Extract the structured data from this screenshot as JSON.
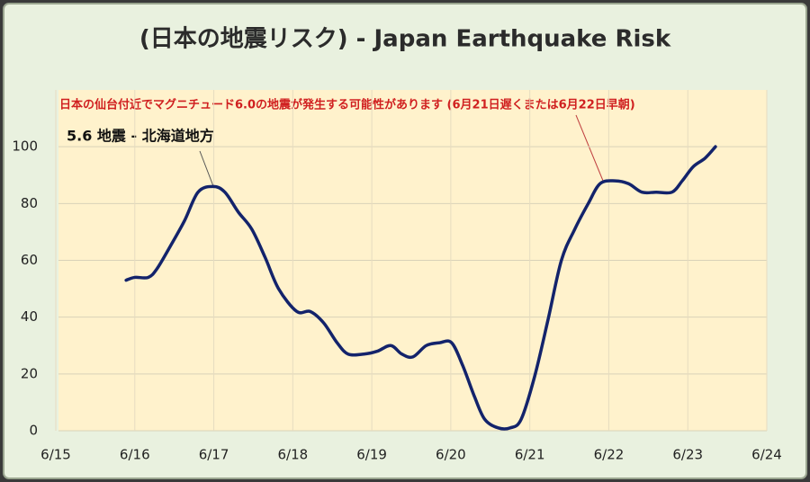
{
  "chart_data": {
    "type": "line",
    "title": "(日本の地震リスク) - Japan Earthquake Risk",
    "annotations": [
      "日本の仙台付近でマグニチュード6.0の地震が発生する可能性があります (6月21日遅くまたは6月22日早朝)",
      "5.6 地震 - 北海道地方"
    ],
    "x": [
      15.89,
      16.0,
      16.17,
      16.28,
      16.45,
      16.63,
      16.8,
      16.99,
      17.14,
      17.31,
      17.48,
      17.65,
      17.82,
      18.05,
      18.22,
      18.39,
      18.56,
      18.7,
      18.9,
      19.07,
      19.24,
      19.38,
      19.52,
      19.69,
      19.86,
      20.01,
      20.15,
      20.3,
      20.43,
      20.6,
      20.75,
      20.89,
      21.06,
      21.23,
      21.4,
      21.57,
      21.74,
      21.89,
      22.08,
      22.25,
      22.42,
      22.6,
      22.8,
      22.93,
      23.07,
      23.22,
      23.35
    ],
    "series": [
      {
        "name": "Japan Earthquake Risk",
        "color": "#13236b",
        "values": [
          53,
          54,
          54,
          57,
          65,
          74,
          84,
          86,
          84,
          77,
          71,
          61,
          50,
          42,
          42,
          38,
          31,
          27,
          27,
          28,
          30,
          27,
          26,
          30,
          31,
          31,
          23,
          12,
          4,
          1,
          1,
          4,
          19,
          39,
          60,
          71,
          80,
          87,
          88,
          87,
          84,
          84,
          84,
          88,
          93,
          96,
          100
        ]
      }
    ],
    "xlim": [
      15,
      24
    ],
    "xticks": [
      {
        "value": 15,
        "label": "6/15"
      },
      {
        "value": 16,
        "label": "6/16"
      },
      {
        "value": 17,
        "label": "6/17"
      },
      {
        "value": 18,
        "label": "6/18"
      },
      {
        "value": 19,
        "label": "6/19"
      },
      {
        "value": 20,
        "label": "6/20"
      },
      {
        "value": 21,
        "label": "6/21"
      },
      {
        "value": 22,
        "label": "6/22"
      },
      {
        "value": 23,
        "label": "6/23"
      },
      {
        "value": 24,
        "label": "6/24"
      }
    ],
    "ylim": [
      0,
      120
    ],
    "yticks": [
      0,
      20,
      40,
      60,
      80,
      100
    ],
    "grid": true
  }
}
